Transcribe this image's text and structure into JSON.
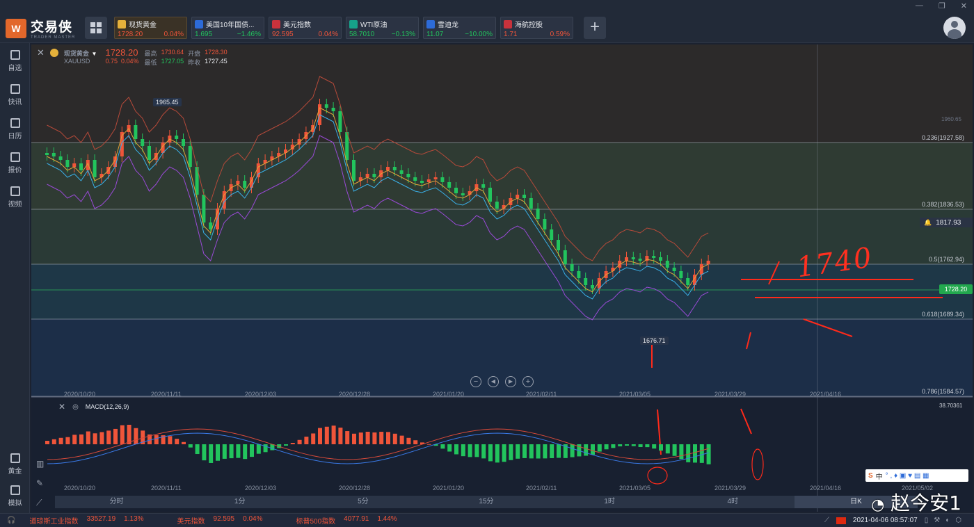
{
  "app": {
    "name": "交易侠",
    "sub": "TRADER MASTER"
  },
  "tickers": [
    {
      "name": "现货黄金",
      "price": "1728.20",
      "change": "0.04%",
      "dir": "up",
      "active": true,
      "icon": "gold-icon"
    },
    {
      "name": "美国10年国债...",
      "price": "1.695",
      "change": "−1.46%",
      "dir": "dn",
      "active": false,
      "icon": "bar-chart-icon"
    },
    {
      "name": "美元指数",
      "price": "92.595",
      "change": "0.04%",
      "dir": "up",
      "active": false,
      "icon": "us-flag-icon"
    },
    {
      "name": "WTI原油",
      "price": "58.7010",
      "change": "−0.13%",
      "dir": "dn",
      "active": false,
      "icon": "oil-icon"
    },
    {
      "name": "雪迪龙",
      "price": "11.07",
      "change": "−10.00%",
      "dir": "dn",
      "active": false,
      "icon": "bar-chart-icon"
    },
    {
      "name": "海航控股",
      "price": "1.71",
      "change": "0.59%",
      "dir": "up",
      "active": false,
      "icon": "hna-icon"
    }
  ],
  "sidebar": {
    "top": [
      "自选",
      "快讯",
      "日历",
      "报价",
      "视频"
    ],
    "bottom": [
      "黄金",
      "模拟"
    ]
  },
  "header": {
    "symbol": "现货黄金",
    "code": "XAUUSD",
    "price": "1728.20",
    "change": "0.75",
    "change_pct": "0.04%",
    "high_label": "最高",
    "high": "1730.64",
    "open_label": "开盘",
    "open": "1728.30",
    "low_label": "最低",
    "low": "1727.05",
    "prev_label": "昨收",
    "prev": "1727.45"
  },
  "main_chart": {
    "fib_levels": [
      {
        "label": "0.236(1927.58)",
        "level": 0.236
      },
      {
        "label": "0.382(1836.53)",
        "level": 0.382
      },
      {
        "label": "0.5(1762.94)",
        "level": 0.5
      },
      {
        "label": "0.618(1689.34)",
        "level": 0.618
      },
      {
        "label": "0.786(1584.57)",
        "level": 0.786
      }
    ],
    "max_label": "1965.45",
    "min_label": "1676.71",
    "alert_price": "1817.93",
    "current_price": "1728.20",
    "axis_top": "1960.65",
    "handwritten": "1740",
    "dates": [
      "2020/10/20",
      "2020/11/11",
      "2020/12/03",
      "2020/12/28",
      "2021/01/20",
      "2021/02/11",
      "2021/03/05",
      "2021/03/29",
      "2021/04/16"
    ]
  },
  "macd": {
    "label": "MACD(12,26,9)",
    "axis_top": "38.70361",
    "dates": [
      "2020/10/20",
      "2020/11/11",
      "2020/12/03",
      "2020/12/28",
      "2021/01/20",
      "2021/02/11",
      "2021/03/05",
      "2021/03/29",
      "2021/04/16",
      "2021/05/02"
    ]
  },
  "timeframes": [
    "分时",
    "1分",
    "5分",
    "15分",
    "1时",
    "4时",
    "日K"
  ],
  "timeframe_selected": "日K",
  "bottom_tickers": [
    {
      "name": "道琼斯工业指数",
      "price": "33527.19",
      "pct": "1.13%"
    },
    {
      "name": "美元指数",
      "price": "92.595",
      "pct": "0.04%"
    },
    {
      "name": "标普500指数",
      "price": "4077.91",
      "pct": "1.44%"
    }
  ],
  "clock": "2021-04-06 08:57:07",
  "watermark": "赵今安1",
  "ime": {
    "label": "中"
  },
  "colors": {
    "up": "#f0553a",
    "down": "#22c45d",
    "accent": "#e2672b"
  }
}
